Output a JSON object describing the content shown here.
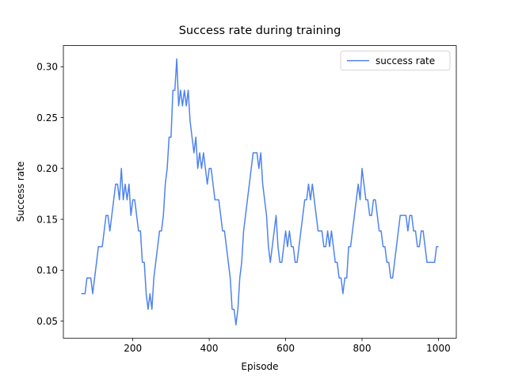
{
  "chart_data": {
    "type": "line",
    "title": "Success rate during training",
    "xlabel": "Episode",
    "ylabel": "Success rate",
    "x": [
      65,
      70,
      75,
      80,
      85,
      90,
      95,
      100,
      105,
      110,
      115,
      120,
      125,
      130,
      135,
      140,
      145,
      150,
      155,
      160,
      165,
      170,
      175,
      180,
      185,
      190,
      195,
      200,
      205,
      210,
      215,
      220,
      225,
      230,
      235,
      240,
      245,
      250,
      255,
      260,
      265,
      270,
      275,
      280,
      285,
      290,
      295,
      300,
      305,
      310,
      315,
      320,
      325,
      330,
      335,
      340,
      345,
      350,
      355,
      360,
      365,
      370,
      375,
      380,
      385,
      390,
      395,
      400,
      405,
      410,
      415,
      420,
      425,
      430,
      435,
      440,
      445,
      450,
      455,
      460,
      465,
      470,
      475,
      480,
      485,
      490,
      495,
      500,
      505,
      510,
      515,
      520,
      525,
      530,
      535,
      540,
      545,
      550,
      555,
      560,
      565,
      570,
      575,
      580,
      585,
      590,
      595,
      600,
      605,
      610,
      615,
      620,
      625,
      630,
      635,
      640,
      645,
      650,
      655,
      660,
      665,
      670,
      675,
      680,
      685,
      690,
      695,
      700,
      705,
      710,
      715,
      720,
      725,
      730,
      735,
      740,
      745,
      750,
      755,
      760,
      765,
      770,
      775,
      780,
      785,
      790,
      795,
      800,
      805,
      810,
      815,
      820,
      825,
      830,
      835,
      840,
      845,
      850,
      855,
      860,
      865,
      870,
      875,
      880,
      885,
      890,
      895,
      900,
      905,
      910,
      915,
      920,
      925,
      930,
      935,
      940,
      945,
      950,
      955,
      960,
      965,
      970,
      975,
      980,
      985,
      990,
      995,
      1000
    ],
    "series": [
      {
        "name": "success rate",
        "color": "#4f83ef",
        "values": [
          0.0769,
          0.0769,
          0.0769,
          0.0923,
          0.0923,
          0.0923,
          0.0769,
          0.0923,
          0.1077,
          0.1231,
          0.1231,
          0.1231,
          0.1385,
          0.1538,
          0.1538,
          0.1385,
          0.1538,
          0.1692,
          0.1846,
          0.1846,
          0.1692,
          0.2,
          0.1692,
          0.1846,
          0.1692,
          0.1846,
          0.1538,
          0.1692,
          0.1692,
          0.1538,
          0.1385,
          0.1385,
          0.1077,
          0.1077,
          0.0769,
          0.0615,
          0.0769,
          0.0615,
          0.0923,
          0.1077,
          0.1231,
          0.1385,
          0.1385,
          0.1538,
          0.1846,
          0.2,
          0.2308,
          0.2308,
          0.2769,
          0.2769,
          0.3077,
          0.2615,
          0.2769,
          0.2615,
          0.2769,
          0.2615,
          0.2769,
          0.2462,
          0.2308,
          0.2154,
          0.2308,
          0.2,
          0.2154,
          0.2,
          0.2154,
          0.2,
          0.1846,
          0.2,
          0.2,
          0.1846,
          0.1692,
          0.1692,
          0.1692,
          0.1538,
          0.1385,
          0.1385,
          0.1231,
          0.1077,
          0.0923,
          0.0615,
          0.0615,
          0.0462,
          0.0615,
          0.0923,
          0.1077,
          0.1385,
          0.1538,
          0.1692,
          0.1846,
          0.2,
          0.2154,
          0.2154,
          0.2154,
          0.2,
          0.2154,
          0.1846,
          0.1692,
          0.1538,
          0.1231,
          0.1077,
          0.1231,
          0.1385,
          0.1538,
          0.1231,
          0.1077,
          0.1077,
          0.1231,
          0.1385,
          0.1231,
          0.1385,
          0.1231,
          0.1231,
          0.1077,
          0.1077,
          0.1231,
          0.1385,
          0.1538,
          0.1692,
          0.1692,
          0.1846,
          0.1692,
          0.1846,
          0.1692,
          0.1538,
          0.1385,
          0.1385,
          0.1385,
          0.1231,
          0.1231,
          0.1385,
          0.1231,
          0.1385,
          0.1231,
          0.1077,
          0.1077,
          0.0923,
          0.0923,
          0.0769,
          0.0923,
          0.0923,
          0.1231,
          0.1231,
          0.1385,
          0.1538,
          0.1692,
          0.1846,
          0.1692,
          0.2,
          0.1846,
          0.1692,
          0.1692,
          0.1538,
          0.1538,
          0.1692,
          0.1692,
          0.1538,
          0.1385,
          0.1385,
          0.1231,
          0.1231,
          0.1077,
          0.1077,
          0.0923,
          0.0923,
          0.1077,
          0.1231,
          0.1385,
          0.1538,
          0.1538,
          0.1538,
          0.1538,
          0.1385,
          0.1538,
          0.1538,
          0.1385,
          0.1385,
          0.1231,
          0.1231,
          0.1385,
          0.1385,
          0.1231,
          0.1077,
          0.1077,
          0.1077,
          0.1077,
          0.1077,
          0.1231,
          0.1231
        ]
      }
    ],
    "xlim": [
      18.25,
      1046.75
    ],
    "ylim": [
      0.0331,
      0.3208
    ],
    "xticks": [
      200,
      400,
      600,
      800,
      1000
    ],
    "yticks": [
      0.05,
      {
        "value": 0.1,
        "label": "0.10"
      },
      0.15,
      {
        "value": 0.2,
        "label": "0.20"
      },
      0.25,
      {
        "value": 0.3,
        "label": "0.30"
      }
    ],
    "legend": "upper right"
  }
}
